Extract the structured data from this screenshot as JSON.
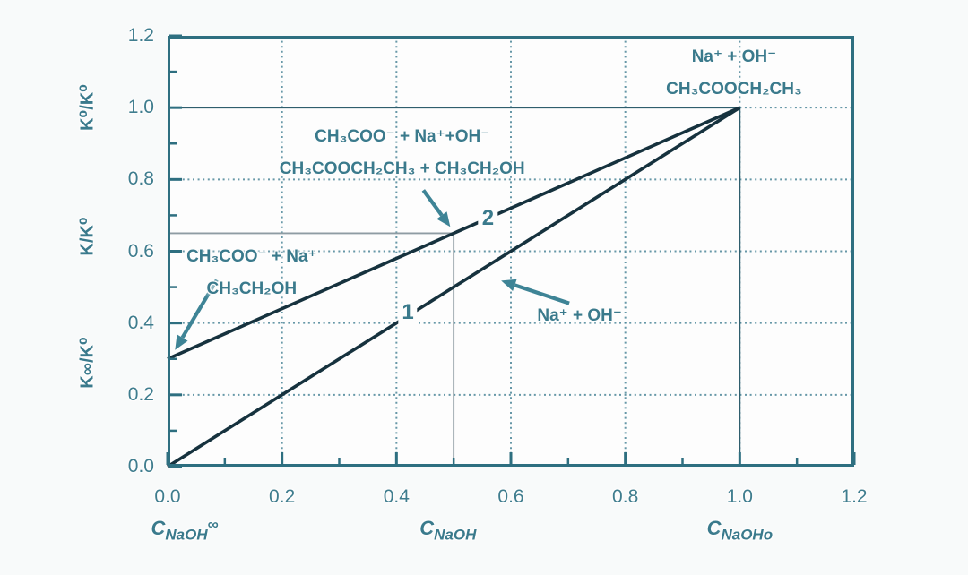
{
  "chart_data": {
    "type": "line",
    "description": "Relative conductivity K/K0 versus NaOH concentration during saponification of ethyl acetate",
    "xlim": [
      0,
      1.2
    ],
    "ylim": [
      0,
      1.2
    ],
    "grid": "dotted",
    "axes": {
      "x": {
        "ticks": [
          {
            "v": 0.0,
            "label": "0.0"
          },
          {
            "v": 0.2,
            "label": "0.2"
          },
          {
            "v": 0.4,
            "label": "0.4"
          },
          {
            "v": 0.6,
            "label": "0.6"
          },
          {
            "v": 0.8,
            "label": "0.8"
          },
          {
            "v": 1.0,
            "label": "1.0"
          },
          {
            "v": 1.2,
            "label": "1.2"
          }
        ],
        "minor_ticks": [
          0.1,
          0.3,
          0.5,
          0.7,
          0.9,
          1.1
        ],
        "unit_labels": [
          {
            "main": "C",
            "sub": "NaOH",
            "sup": "∞",
            "at": 0.03
          },
          {
            "main": "C",
            "sub": "NaOH",
            "sup": "",
            "at": 0.49
          },
          {
            "main": "C",
            "sub": "NaOHo",
            "sup": "",
            "at": 1.0
          }
        ]
      },
      "y": {
        "ticks": [
          {
            "v": 0.0,
            "label": "0.0"
          },
          {
            "v": 0.2,
            "label": "0.2"
          },
          {
            "v": 0.4,
            "label": "0.4"
          },
          {
            "v": 0.6,
            "label": "0.6"
          },
          {
            "v": 0.8,
            "label": "0.8"
          },
          {
            "v": 1.0,
            "label": "1.0"
          },
          {
            "v": 1.2,
            "label": "1.2"
          }
        ],
        "minor_ticks": [
          0.1,
          0.3,
          0.5,
          0.7,
          0.9,
          1.1
        ],
        "labels": [
          {
            "text": "K⁰/K⁰",
            "at": 1.0
          },
          {
            "text": "K/K⁰",
            "at": 0.64
          },
          {
            "text": "K∞/K⁰",
            "at": 0.29
          }
        ]
      }
    },
    "gridlines": {
      "x": [
        0.2,
        0.4,
        0.6,
        0.8,
        1.0
      ],
      "y": [
        0.2,
        0.4,
        0.6,
        0.8
      ],
      "extra_segments": [
        {
          "from": [
            1.0,
            1.0
          ],
          "to": [
            1.2,
            1.0
          ]
        }
      ]
    },
    "reference_lines": [
      {
        "from": [
          0.0,
          1.0
        ],
        "to": [
          1.0,
          1.0
        ],
        "style": "dark"
      },
      {
        "from": [
          1.0,
          0.0
        ],
        "to": [
          1.0,
          1.0
        ],
        "style": "dark"
      },
      {
        "from": [
          0.0,
          0.65
        ],
        "to": [
          0.5,
          0.65
        ],
        "style": "gray"
      },
      {
        "from": [
          0.5,
          0.0
        ],
        "to": [
          0.5,
          0.65
        ],
        "style": "gray"
      }
    ],
    "series": [
      {
        "name": "Na⁺ + OH⁻",
        "label": "1",
        "label_at": [
          0.42,
          0.43
        ],
        "points": [
          [
            0.0,
            0.0
          ],
          [
            1.0,
            1.0
          ]
        ]
      },
      {
        "name": "CH₃COO⁻ + Na⁺ / CH₃CH₂OH",
        "label": "2",
        "label_at": [
          0.56,
          0.69
        ],
        "points": [
          [
            0.0,
            0.3
          ],
          [
            1.0,
            1.0
          ]
        ]
      }
    ],
    "key_points": [
      {
        "name": "point-2",
        "x": 0.5,
        "y": 0.65
      },
      {
        "name": "convergence",
        "x": 1.0,
        "y": 1.0
      },
      {
        "name": "intercept-curve-2",
        "x": 0.0,
        "y": 0.3
      }
    ],
    "annotations": [
      {
        "id": "initial-state",
        "lines": [
          "Na⁺ + OH⁻",
          "CH₃COOCH₂CH₃"
        ],
        "at": [
          0.99,
          1.096
        ],
        "arrow": null
      },
      {
        "id": "reaction-state",
        "lines": [
          "CH₃COO⁻ + Na⁺+OH⁻",
          "CH₃COOCH₂CH₃ + CH₃CH₂OH"
        ],
        "at": [
          0.41,
          0.874
        ],
        "arrow": {
          "from": [
            0.447,
            0.77
          ],
          "to": [
            0.494,
            0.668
          ]
        }
      },
      {
        "id": "final-state",
        "lines": [
          "CH₃COO⁻ + Na⁺",
          "CH₃CH₂OH"
        ],
        "at": [
          0.147,
          0.54
        ],
        "arrow": {
          "from": [
            0.086,
            0.52
          ],
          "to": [
            0.013,
            0.325
          ]
        }
      },
      {
        "id": "naoh-line",
        "lines": [
          "Na⁺ + OH⁻"
        ],
        "at": [
          0.72,
          0.42
        ],
        "arrow": {
          "from": [
            0.702,
            0.455
          ],
          "to": [
            0.583,
            0.518
          ]
        }
      }
    ],
    "colors": {
      "frame": "#2e6f80",
      "grid": "#4c8699",
      "text": "#3a7a8c",
      "tick_label": "#3f7d8e",
      "series_line": "#16323e",
      "arrow": "#3e8496",
      "ref_dark": "#2f5e6d",
      "ref_gray": "#8e9ca3",
      "plot_bg": "#fdfdfd",
      "page_bg": "#f8fafa"
    }
  }
}
